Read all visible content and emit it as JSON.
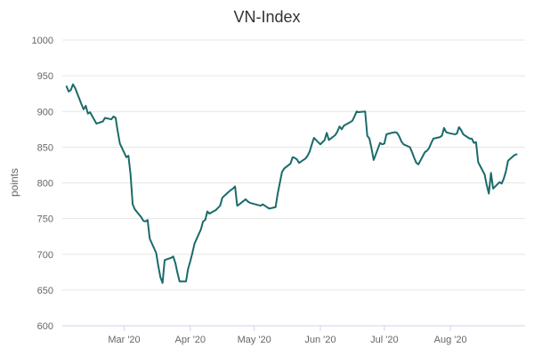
{
  "chart_data": {
    "type": "line",
    "title": "VN-Index",
    "xlabel": "",
    "ylabel": "points",
    "ylim": [
      600,
      1000
    ],
    "yticks": [
      "1000",
      "950",
      "900",
      "850",
      "800",
      "750",
      "700",
      "650",
      "600"
    ],
    "xticks": [
      {
        "label": "Mar '20",
        "date": "2020-03-01"
      },
      {
        "label": "Apr '20",
        "date": "2020-04-01"
      },
      {
        "label": "May '20",
        "date": "2020-05-01"
      },
      {
        "label": "Jun '20",
        "date": "2020-06-01"
      },
      {
        "label": "Jul '20",
        "date": "2020-07-01"
      },
      {
        "label": "Aug '20",
        "date": "2020-08-01"
      }
    ],
    "grid": true,
    "legend": "none",
    "line_color": "#1b6b6b",
    "series": [
      {
        "name": "",
        "points": [
          [
            "2020-02-03",
            935
          ],
          [
            "2020-02-04",
            928
          ],
          [
            "2020-02-05",
            930
          ],
          [
            "2020-02-06",
            938
          ],
          [
            "2020-02-07",
            933
          ],
          [
            "2020-02-10",
            910
          ],
          [
            "2020-02-11",
            903
          ],
          [
            "2020-02-12",
            908
          ],
          [
            "2020-02-13",
            897
          ],
          [
            "2020-02-14",
            899
          ],
          [
            "2020-02-17",
            883
          ],
          [
            "2020-02-19",
            885
          ],
          [
            "2020-02-20",
            886
          ],
          [
            "2020-02-21",
            891
          ],
          [
            "2020-02-24",
            889
          ],
          [
            "2020-02-25",
            893
          ],
          [
            "2020-02-26",
            891
          ],
          [
            "2020-02-27",
            872
          ],
          [
            "2020-02-28",
            855
          ],
          [
            "2020-03-02",
            836
          ],
          [
            "2020-03-03",
            838
          ],
          [
            "2020-03-04",
            812
          ],
          [
            "2020-03-05",
            770
          ],
          [
            "2020-03-06",
            763
          ],
          [
            "2020-03-09",
            752
          ],
          [
            "2020-03-10",
            747
          ],
          [
            "2020-03-11",
            746
          ],
          [
            "2020-03-12",
            748
          ],
          [
            "2020-03-13",
            722
          ],
          [
            "2020-03-16",
            702
          ],
          [
            "2020-03-17",
            684
          ],
          [
            "2020-03-18",
            668
          ],
          [
            "2020-03-19",
            660
          ],
          [
            "2020-03-20",
            692
          ],
          [
            "2020-03-23",
            695
          ],
          [
            "2020-03-24",
            697
          ],
          [
            "2020-03-25",
            688
          ],
          [
            "2020-03-26",
            674
          ],
          [
            "2020-03-27",
            662
          ],
          [
            "2020-03-30",
            662
          ],
          [
            "2020-03-31",
            680
          ],
          [
            "2020-04-01",
            690
          ],
          [
            "2020-04-02",
            702
          ],
          [
            "2020-04-03",
            715
          ],
          [
            "2020-04-06",
            735
          ],
          [
            "2020-04-07",
            746
          ],
          [
            "2020-04-08",
            748
          ],
          [
            "2020-04-09",
            760
          ],
          [
            "2020-04-10",
            757
          ],
          [
            "2020-04-13",
            762
          ],
          [
            "2020-04-14",
            765
          ],
          [
            "2020-04-15",
            768
          ],
          [
            "2020-04-16",
            779
          ],
          [
            "2020-04-17",
            782
          ],
          [
            "2020-04-20",
            790
          ],
          [
            "2020-04-21",
            792
          ],
          [
            "2020-04-22",
            795
          ],
          [
            "2020-04-23",
            768
          ],
          [
            "2020-04-24",
            770
          ],
          [
            "2020-04-27",
            777
          ],
          [
            "2020-04-28",
            774
          ],
          [
            "2020-04-29",
            772
          ],
          [
            "2020-05-04",
            768
          ],
          [
            "2020-05-05",
            770
          ],
          [
            "2020-05-06",
            768
          ],
          [
            "2020-05-07",
            766
          ],
          [
            "2020-05-08",
            764
          ],
          [
            "2020-05-11",
            766
          ],
          [
            "2020-05-12",
            785
          ],
          [
            "2020-05-13",
            800
          ],
          [
            "2020-05-14",
            815
          ],
          [
            "2020-05-15",
            820
          ],
          [
            "2020-05-18",
            827
          ],
          [
            "2020-05-19",
            836
          ],
          [
            "2020-05-20",
            835
          ],
          [
            "2020-05-21",
            833
          ],
          [
            "2020-05-22",
            828
          ],
          [
            "2020-05-25",
            834
          ],
          [
            "2020-05-26",
            838
          ],
          [
            "2020-05-27",
            844
          ],
          [
            "2020-05-28",
            854
          ],
          [
            "2020-05-29",
            863
          ],
          [
            "2020-06-01",
            854
          ],
          [
            "2020-06-02",
            857
          ],
          [
            "2020-06-03",
            860
          ],
          [
            "2020-06-04",
            870
          ],
          [
            "2020-06-05",
            860
          ],
          [
            "2020-06-08",
            867
          ],
          [
            "2020-06-09",
            872
          ],
          [
            "2020-06-10",
            879
          ],
          [
            "2020-06-11",
            875
          ],
          [
            "2020-06-12",
            880
          ],
          [
            "2020-06-15",
            885
          ],
          [
            "2020-06-16",
            887
          ],
          [
            "2020-06-17",
            893
          ],
          [
            "2020-06-18",
            900
          ],
          [
            "2020-06-19",
            899
          ],
          [
            "2020-06-22",
            900
          ],
          [
            "2020-06-23",
            866
          ],
          [
            "2020-06-24",
            862
          ],
          [
            "2020-06-25",
            848
          ],
          [
            "2020-06-26",
            832
          ],
          [
            "2020-06-29",
            856
          ],
          [
            "2020-06-30",
            854
          ],
          [
            "2020-07-01",
            855
          ],
          [
            "2020-07-02",
            868
          ],
          [
            "2020-07-03",
            869
          ],
          [
            "2020-07-06",
            871
          ],
          [
            "2020-07-07",
            870
          ],
          [
            "2020-07-08",
            865
          ],
          [
            "2020-07-09",
            858
          ],
          [
            "2020-07-10",
            854
          ],
          [
            "2020-07-13",
            850
          ],
          [
            "2020-07-14",
            843
          ],
          [
            "2020-07-15",
            835
          ],
          [
            "2020-07-16",
            828
          ],
          [
            "2020-07-17",
            826
          ],
          [
            "2020-07-20",
            843
          ],
          [
            "2020-07-21",
            845
          ],
          [
            "2020-07-22",
            849
          ],
          [
            "2020-07-23",
            856
          ],
          [
            "2020-07-24",
            862
          ],
          [
            "2020-07-27",
            864
          ],
          [
            "2020-07-28",
            866
          ],
          [
            "2020-07-29",
            877
          ],
          [
            "2020-07-30",
            871
          ],
          [
            "2020-07-31",
            870
          ],
          [
            "2020-08-03",
            868
          ],
          [
            "2020-08-04",
            869
          ],
          [
            "2020-08-05",
            878
          ],
          [
            "2020-08-06",
            874
          ],
          [
            "2020-08-07",
            868
          ],
          [
            "2020-08-10",
            862
          ],
          [
            "2020-08-11",
            862
          ],
          [
            "2020-08-12",
            856
          ],
          [
            "2020-08-13",
            857
          ],
          [
            "2020-08-14",
            829
          ],
          [
            "2020-08-17",
            812
          ],
          [
            "2020-08-18",
            797
          ],
          [
            "2020-08-19",
            785
          ],
          [
            "2020-08-20",
            814
          ],
          [
            "2020-08-21",
            792
          ],
          [
            "2020-08-24",
            801
          ],
          [
            "2020-08-25",
            799
          ],
          [
            "2020-08-26",
            806
          ],
          [
            "2020-08-27",
            816
          ],
          [
            "2020-08-28",
            831
          ],
          [
            "2020-08-31",
            839
          ],
          [
            "2020-09-01",
            840
          ]
        ]
      }
    ]
  }
}
